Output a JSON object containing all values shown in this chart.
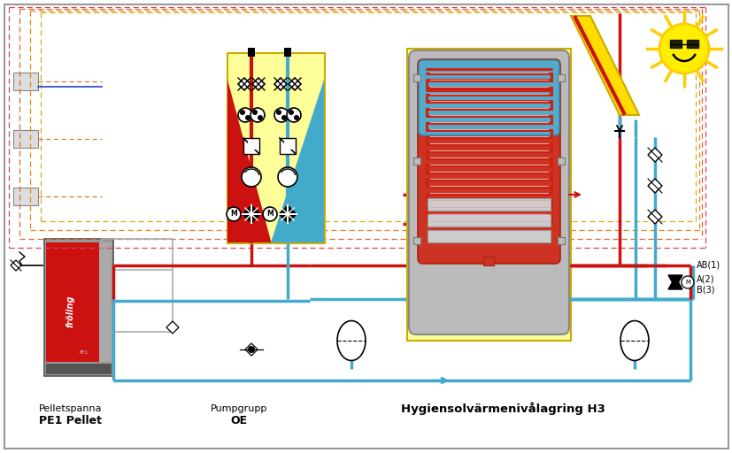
{
  "bg": "#ffffff",
  "red": "#cc1111",
  "blue": "#44aacc",
  "yellow": "#ffff99",
  "gray": "#aaaaaa",
  "dark_gray": "#777777",
  "label1": "Pelletspanna",
  "label1b": "PE1 Pellet",
  "label2": "Pumpgrupp",
  "label2b": "OE",
  "label3": "Hygiensolvärmenivålagring H3",
  "ab1": "AB(1)",
  "a2": "A(2)",
  "b3": "B(3)"
}
